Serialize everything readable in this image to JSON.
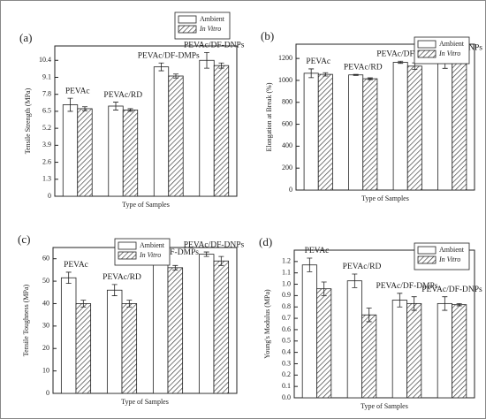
{
  "chart_data": [
    {
      "type": "bar",
      "panel_label": "(a)",
      "y_label": "Tensile Strength (MPa)",
      "x_label": "Type of Samples",
      "categories": [
        "PEVAc",
        "PEVAc/RD",
        "PEVAc/DF-DMPs",
        "PEVAc/DF-DNPs"
      ],
      "series": [
        {
          "name": "Ambient",
          "color": "#ffffff",
          "pattern": "solid",
          "values": [
            7.0,
            6.9,
            9.9,
            10.4
          ],
          "errors": [
            0.5,
            0.3,
            0.3,
            0.6
          ]
        },
        {
          "name": "In Vitro",
          "color": "#ffffff",
          "pattern": "hatch",
          "values": [
            6.7,
            6.6,
            9.2,
            10.0
          ],
          "errors": [
            0.15,
            0.1,
            0.15,
            0.2
          ]
        }
      ],
      "ylim": [
        0,
        11.5
      ],
      "yticks": [
        0,
        1.3,
        2.6,
        3.9,
        5.2,
        6.5,
        7.8,
        9.1,
        10.4
      ],
      "legend_position": "above right"
    },
    {
      "type": "bar",
      "panel_label": "(b)",
      "y_label": "Elongation at Break (%)",
      "x_label": "Type of Samples",
      "categories": [
        "PEVAc",
        "PEVAc/RD",
        "PEVAc/DF-DMPs",
        "PEVAc/DF-DNPs"
      ],
      "series": [
        {
          "name": "Ambient",
          "color": "#ffffff",
          "pattern": "solid",
          "values": [
            1065,
            1050,
            1165,
            1170
          ],
          "errors": [
            40,
            5,
            10,
            60
          ]
        },
        {
          "name": "In Vitro",
          "color": "#ffffff",
          "pattern": "hatch",
          "values": [
            1055,
            1015,
            1130,
            1175
          ],
          "errors": [
            15,
            8,
            30,
            8
          ]
        }
      ],
      "ylim": [
        0,
        1330
      ],
      "yticks": [
        0,
        200,
        400,
        600,
        800,
        1000,
        1200
      ],
      "legend_position": "upper right"
    },
    {
      "type": "bar",
      "panel_label": "(c)",
      "y_label": "Tensile Toughness (MPa)",
      "x_label": "Type of Samples",
      "categories": [
        "PEVAc",
        "PEVAc/RD",
        "PEVAc/DF-DMPs",
        "PEVAc/DF-DNPs"
      ],
      "series": [
        {
          "name": "Ambient",
          "color": "#ffffff",
          "pattern": "solid",
          "values": [
            51.5,
            46,
            58.5,
            62
          ],
          "errors": [
            2.5,
            2.5,
            1,
            1
          ]
        },
        {
          "name": "In Vitro",
          "color": "#ffffff",
          "pattern": "hatch",
          "values": [
            40,
            40,
            56,
            59
          ],
          "errors": [
            1.5,
            1.5,
            1,
            2
          ]
        }
      ],
      "ylim": [
        0,
        65
      ],
      "yticks": [
        0,
        10,
        20,
        30,
        40,
        50,
        60
      ],
      "legend_position": "upper left"
    },
    {
      "type": "bar",
      "panel_label": "(d)",
      "y_label": "Young's Modulus (MPa)",
      "x_label": "Type of Samples",
      "categories": [
        "PEVAc",
        "PEVAc/RD",
        "PEVAc/DF-DMPs",
        "PEVAc/DF-DNPs"
      ],
      "series": [
        {
          "name": "Ambient",
          "color": "#ffffff",
          "pattern": "solid",
          "values": [
            1.17,
            1.03,
            0.86,
            0.83
          ],
          "errors": [
            0.06,
            0.06,
            0.06,
            0.06
          ]
        },
        {
          "name": "In Vitro",
          "color": "#ffffff",
          "pattern": "hatch",
          "values": [
            0.96,
            0.73,
            0.83,
            0.82
          ],
          "errors": [
            0.06,
            0.06,
            0.06,
            0.01
          ]
        }
      ],
      "ylim": [
        0,
        1.3
      ],
      "yticks": [
        {
          "value": 0,
          "label": "0.0"
        },
        0.1,
        0.2,
        0.3,
        0.4,
        0.5,
        0.6,
        0.7,
        0.8,
        0.9,
        {
          "value": 1,
          "label": "1.0"
        },
        1.1,
        1.2
      ],
      "legend_position": "upper right"
    }
  ]
}
